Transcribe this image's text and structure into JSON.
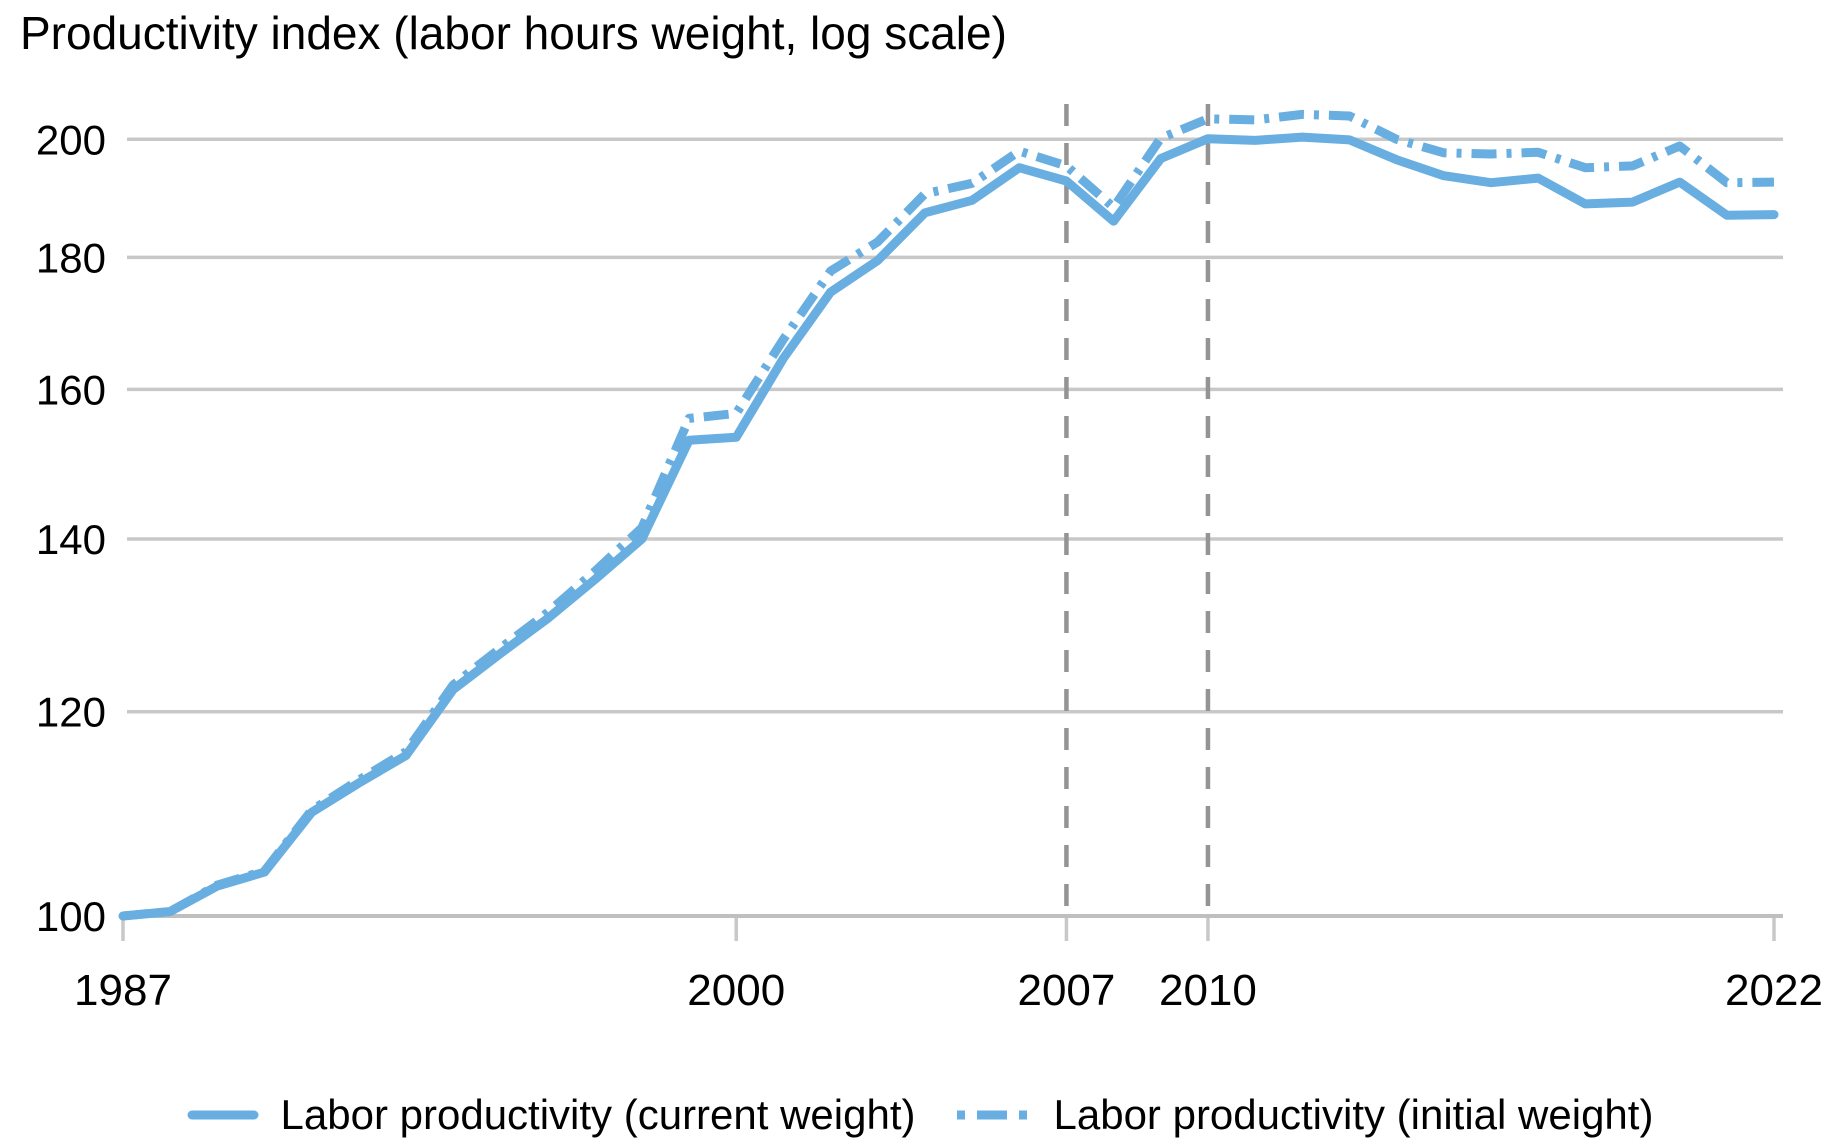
{
  "title": "Productivity index (labor hours weight, log scale)",
  "legend": {
    "current_label": "Labor productivity (current weight)",
    "initial_label": "Labor productivity (initial weight)"
  },
  "colors": {
    "series_blue": "#69AEE0",
    "grid_gray": "#c8c8c8",
    "axis_gray": "#bfbfbf",
    "vline_gray": "#949494",
    "text_black": "#000000"
  },
  "chart_data": {
    "type": "line",
    "title": "Productivity index (labor hours weight, log scale)",
    "log_scale": true,
    "xlabel": "",
    "ylabel": "",
    "xlim": [
      1987,
      2022
    ],
    "ylim": [
      100,
      206
    ],
    "y_ticks": [
      100,
      120,
      140,
      160,
      180,
      200
    ],
    "x_ticks": [
      1987,
      2000,
      2007,
      2010,
      2022
    ],
    "vlines": [
      2007,
      2010
    ],
    "grid": "horizontal",
    "legend_position": "bottom",
    "x": [
      1987,
      1988,
      1989,
      1990,
      1991,
      1992,
      1993,
      1994,
      1995,
      1996,
      1997,
      1998,
      1999,
      2000,
      2001,
      2002,
      2003,
      2004,
      2005,
      2006,
      2007,
      2008,
      2009,
      2010,
      2011,
      2012,
      2013,
      2014,
      2015,
      2016,
      2017,
      2018,
      2019,
      2020,
      2021,
      2022
    ],
    "series": [
      {
        "name": "Labor productivity (current weight)",
        "line_style": "solid",
        "values": [
          100.0,
          100.4,
          102.7,
          104.0,
          109.7,
          112.6,
          115.4,
          122.4,
          126.4,
          130.4,
          135.0,
          140.0,
          152.9,
          153.3,
          164.5,
          174.5,
          179.5,
          187.3,
          189.4,
          195.0,
          192.7,
          185.9,
          196.6,
          200.1,
          199.8,
          200.4,
          199.9,
          196.4,
          193.6,
          192.4,
          193.2,
          188.8,
          189.1,
          192.5,
          186.9,
          187.0
        ]
      },
      {
        "name": "Labor productivity (initial weight)",
        "line_style": "dash-dot",
        "values": [
          100.0,
          100.4,
          102.8,
          104.1,
          109.9,
          112.9,
          115.8,
          122.9,
          127.0,
          131.1,
          136.0,
          141.4,
          155.9,
          156.6,
          167.3,
          177.8,
          182.5,
          190.5,
          192.3,
          197.9,
          195.3,
          188.2,
          200.2,
          203.7,
          203.5,
          204.5,
          204.2,
          200.0,
          197.6,
          197.4,
          197.7,
          195.0,
          195.3,
          198.8,
          192.4,
          192.5
        ]
      }
    ]
  }
}
